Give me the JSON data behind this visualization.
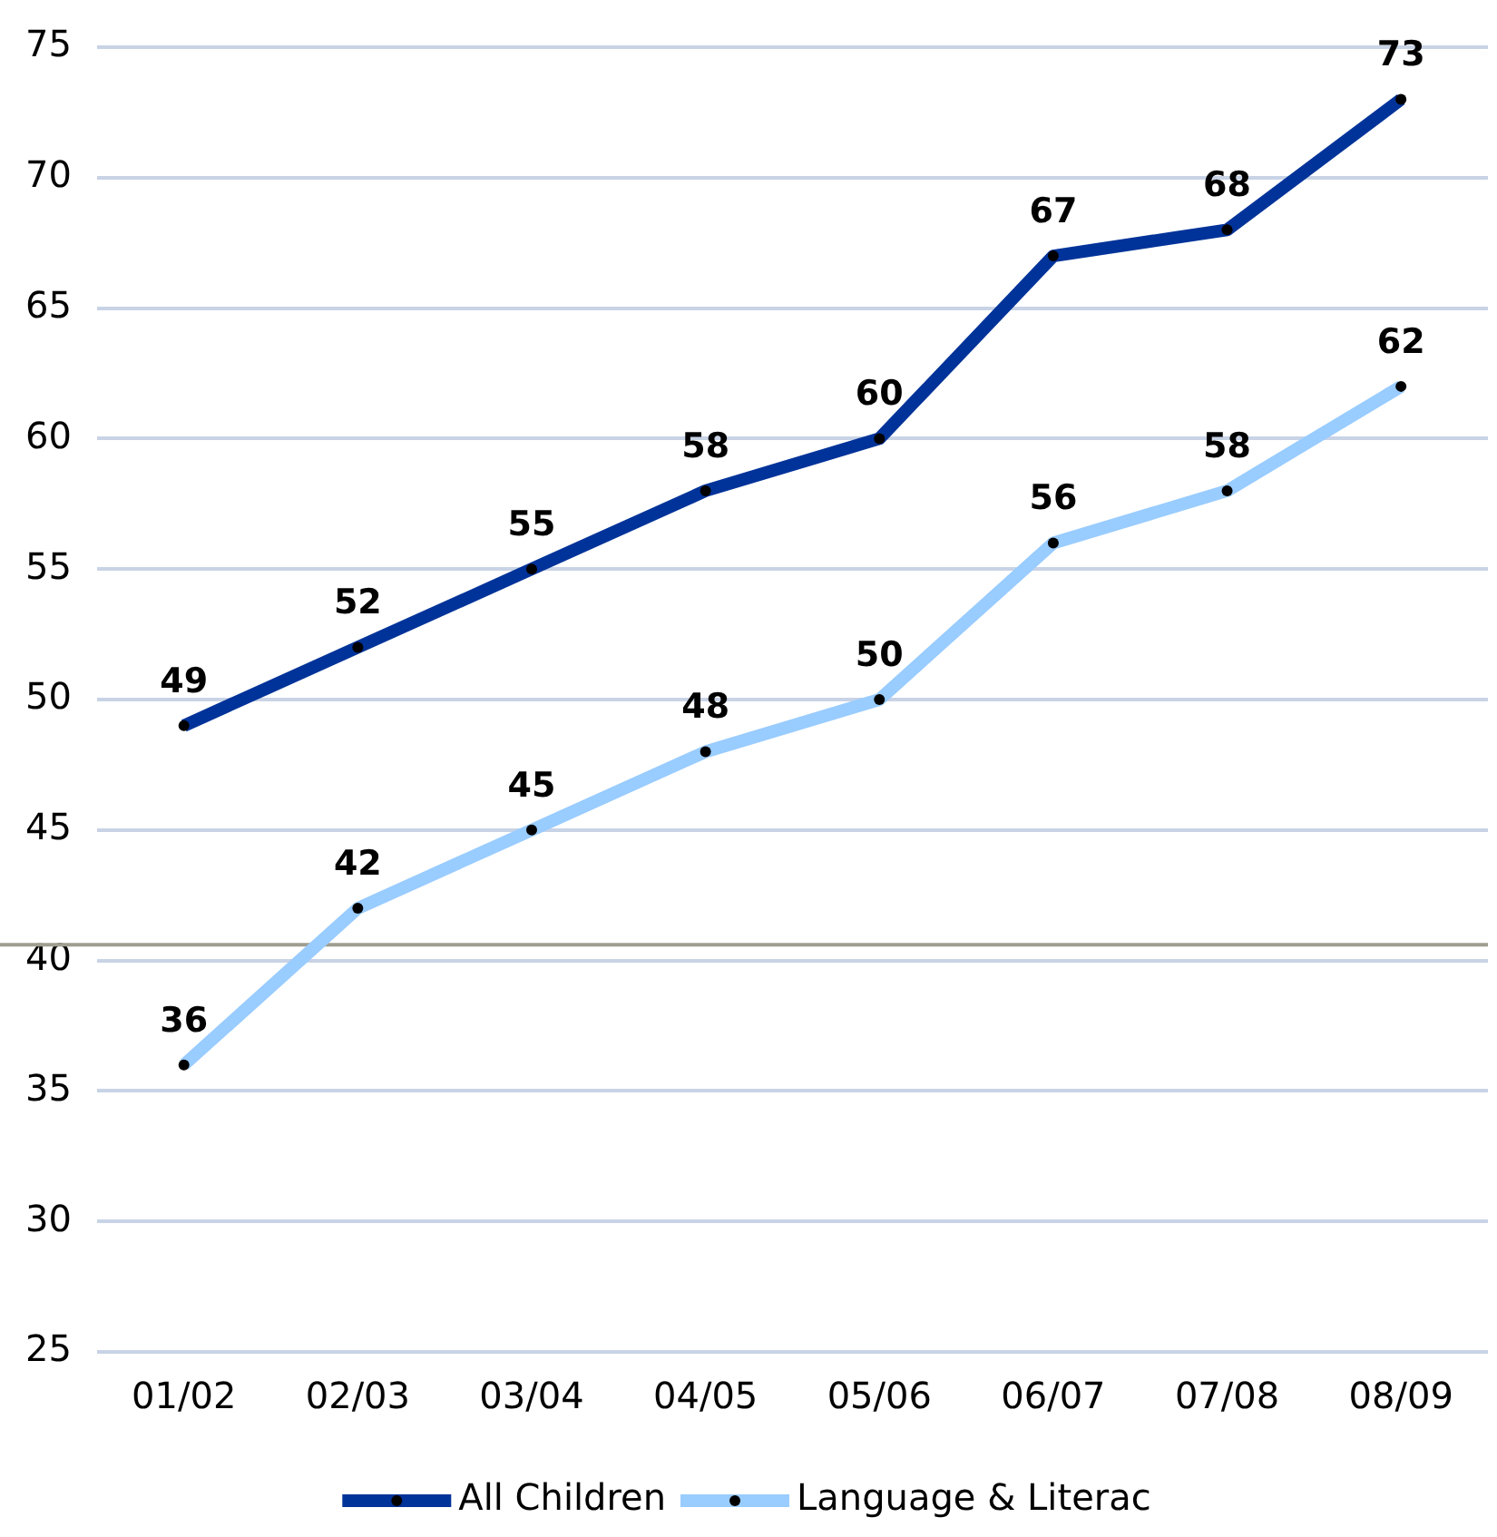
{
  "chart_data": {
    "type": "line",
    "categories": [
      "01/02",
      "02/03",
      "03/04",
      "04/05",
      "05/06",
      "06/07",
      "07/08",
      "08/09"
    ],
    "series": [
      {
        "name": "All Children",
        "color": "#003399",
        "values": [
          49,
          52,
          55,
          58,
          60,
          67,
          68,
          73
        ]
      },
      {
        "name": "Language & Literac",
        "color": "#99ccff",
        "values": [
          36,
          42,
          45,
          48,
          50,
          56,
          58,
          62
        ]
      }
    ],
    "ylim": [
      25,
      75
    ],
    "yticks": [
      25,
      30,
      35,
      40,
      45,
      50,
      55,
      60,
      65,
      70,
      75
    ],
    "grid": "y",
    "legend": "bottom",
    "marker": "circle",
    "data_labels": true,
    "ref_lines": [
      {
        "axis": "y",
        "value": 40.6,
        "color": "#a09e90"
      }
    ]
  }
}
